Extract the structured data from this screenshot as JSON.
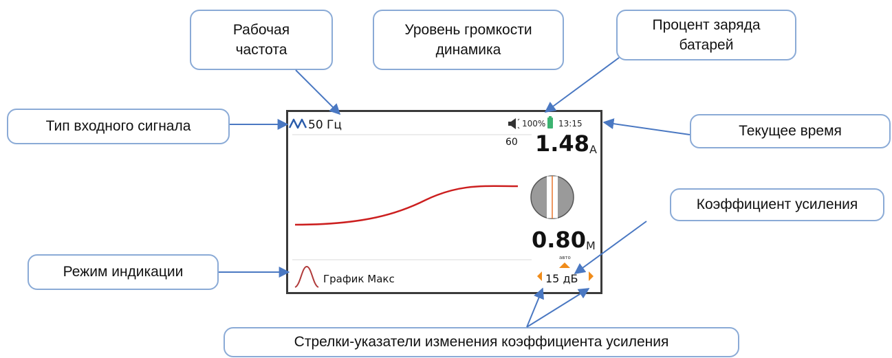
{
  "callouts": {
    "frequency": "Рабочая\nчастота",
    "volume": "Уровень громкости\nдинамика",
    "battery": "Процент заряда\nбатарей",
    "signal_type": "Тип входного сигнала",
    "time": "Текущее время",
    "gain": "Коэффициент усиления",
    "mode": "Режим индикации",
    "arrows": "Стрелки-указатели изменения коэффициента усиления"
  },
  "display": {
    "frequency": "50 Гц",
    "battery_percent": "100%",
    "time": "13:15",
    "scale_max": "60",
    "current_value": "1.48",
    "current_unit": "А",
    "depth_value": "0.80",
    "depth_unit": "М",
    "auto_label": "авто",
    "mode_label": "График Макс",
    "gain_value": "15 дБ"
  },
  "colors": {
    "callout_border": "#8aaad6",
    "arrow": "#4a78c2",
    "curve": "#cc1f1f",
    "gain_arrow": "#f08c1a",
    "battery": "#3cb371",
    "wave_icon": "#2a5caa"
  }
}
